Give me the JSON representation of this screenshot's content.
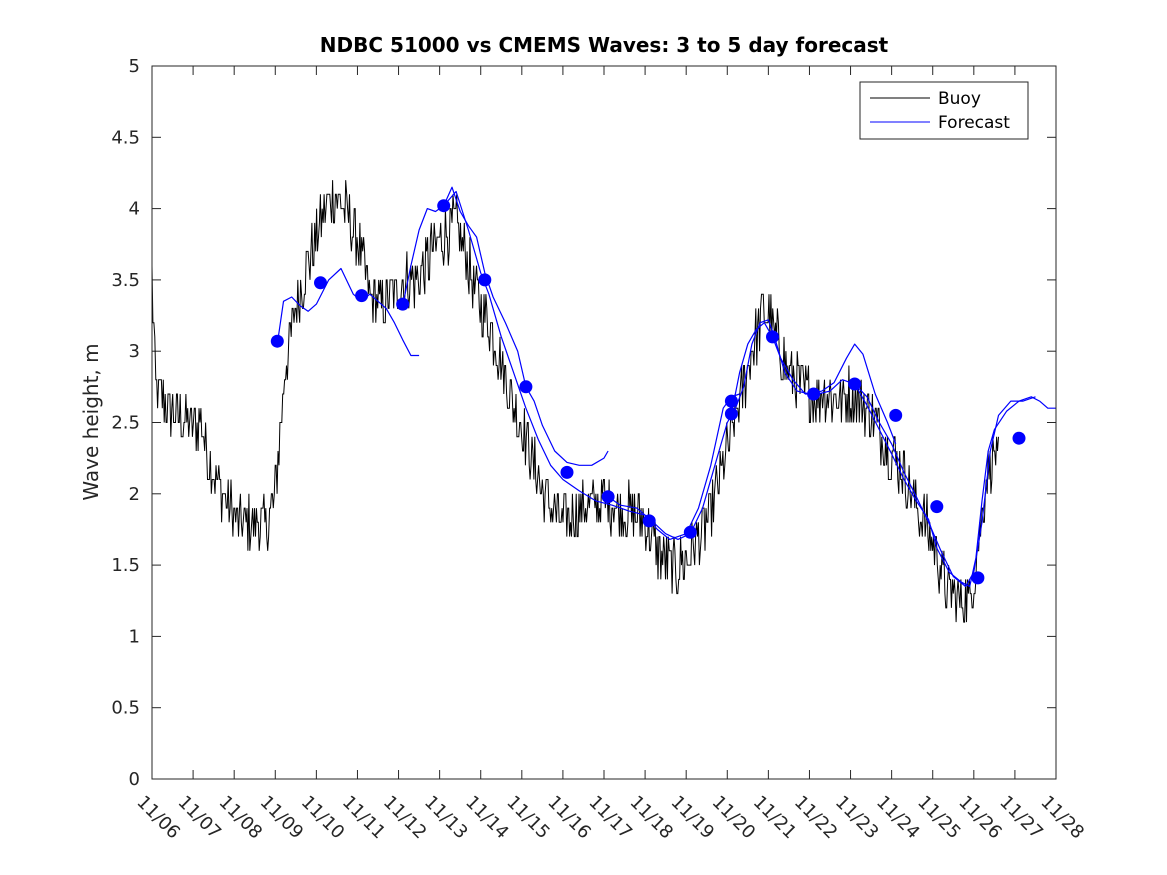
{
  "chart_data": {
    "type": "line",
    "title": "NDBC 51000 vs CMEMS Waves: 3 to 5 day forecast",
    "xlabel": "",
    "ylabel": "Wave height, m",
    "xlim": [
      0,
      22
    ],
    "ylim": [
      0,
      5
    ],
    "x_tick_labels": [
      "11/06",
      "11/07",
      "11/08",
      "11/09",
      "11/10",
      "11/11",
      "11/12",
      "11/13",
      "11/14",
      "11/15",
      "11/16",
      "11/17",
      "11/18",
      "11/19",
      "11/20",
      "11/21",
      "11/22",
      "11/23",
      "11/24",
      "11/25",
      "11/26",
      "11/27",
      "11/28"
    ],
    "y_ticks": [
      0,
      0.5,
      1,
      1.5,
      2,
      2.5,
      3,
      3.5,
      4,
      4.5,
      5
    ],
    "y_tick_labels": [
      "0",
      "0.5",
      "1",
      "1.5",
      "2",
      "2.5",
      "3",
      "3.5",
      "4",
      "4.5",
      "5"
    ],
    "legend": {
      "position": "top-right",
      "entries": [
        "Buoy",
        "Forecast"
      ]
    },
    "colors": {
      "buoy": "#000000",
      "forecast": "#0000ff",
      "axis": "#262626"
    },
    "buoy_anchors": [
      [
        0.0,
        3.5
      ],
      [
        0.1,
        2.7
      ],
      [
        0.4,
        2.6
      ],
      [
        0.8,
        2.5
      ],
      [
        1.2,
        2.5
      ],
      [
        1.4,
        2.2
      ],
      [
        1.7,
        2.0
      ],
      [
        2.1,
        1.8
      ],
      [
        2.4,
        1.8
      ],
      [
        2.8,
        1.8
      ],
      [
        3.0,
        2.0
      ],
      [
        3.1,
        2.4
      ],
      [
        3.25,
        2.9
      ],
      [
        3.5,
        3.3
      ],
      [
        3.8,
        3.6
      ],
      [
        4.2,
        4.0
      ],
      [
        4.4,
        4.1
      ],
      [
        4.7,
        4.0
      ],
      [
        5.0,
        3.8
      ],
      [
        5.3,
        3.4
      ],
      [
        5.6,
        3.3
      ],
      [
        5.9,
        3.4
      ],
      [
        6.2,
        3.5
      ],
      [
        6.5,
        3.5
      ],
      [
        6.8,
        3.7
      ],
      [
        7.1,
        3.8
      ],
      [
        7.4,
        3.9
      ],
      [
        7.6,
        3.7
      ],
      [
        7.9,
        3.4
      ],
      [
        8.2,
        3.2
      ],
      [
        8.5,
        2.9
      ],
      [
        8.8,
        2.6
      ],
      [
        9.1,
        2.4
      ],
      [
        9.4,
        2.1
      ],
      [
        9.7,
        1.9
      ],
      [
        10.0,
        1.8
      ],
      [
        10.5,
        1.9
      ],
      [
        11.0,
        1.95
      ],
      [
        11.5,
        1.9
      ],
      [
        12.0,
        1.8
      ],
      [
        12.3,
        1.6
      ],
      [
        12.7,
        1.45
      ],
      [
        13.0,
        1.55
      ],
      [
        13.3,
        1.7
      ],
      [
        13.6,
        1.85
      ],
      [
        14.0,
        2.3
      ],
      [
        14.3,
        2.65
      ],
      [
        14.6,
        3.0
      ],
      [
        14.9,
        3.3
      ],
      [
        15.2,
        3.1
      ],
      [
        15.5,
        2.85
      ],
      [
        15.8,
        2.75
      ],
      [
        16.1,
        2.7
      ],
      [
        16.4,
        2.7
      ],
      [
        16.7,
        2.65
      ],
      [
        17.0,
        2.7
      ],
      [
        17.3,
        2.65
      ],
      [
        17.6,
        2.5
      ],
      [
        17.9,
        2.35
      ],
      [
        18.2,
        2.2
      ],
      [
        18.5,
        2.0
      ],
      [
        18.8,
        1.8
      ],
      [
        19.1,
        1.6
      ],
      [
        19.3,
        1.35
      ],
      [
        19.6,
        1.25
      ],
      [
        19.9,
        1.25
      ],
      [
        20.1,
        1.6
      ],
      [
        20.3,
        2.1
      ],
      [
        20.5,
        2.3
      ],
      [
        20.6,
        2.2
      ]
    ],
    "buoy_noise_amplitude": 0.2,
    "forecast_series": [
      {
        "name": "Forecast",
        "points": [
          [
            3.05,
            3.05
          ],
          [
            3.2,
            3.35
          ],
          [
            3.4,
            3.38
          ],
          [
            3.6,
            3.32
          ],
          [
            3.8,
            3.28
          ],
          [
            4.0,
            3.33
          ],
          [
            4.3,
            3.5
          ],
          [
            4.6,
            3.58
          ],
          [
            4.9,
            3.4
          ],
          [
            5.1,
            3.35
          ],
          [
            5.3,
            3.4
          ],
          [
            5.5,
            3.35
          ],
          [
            5.7,
            3.3
          ],
          [
            5.9,
            3.2
          ],
          [
            6.1,
            3.08
          ],
          [
            6.3,
            2.97
          ],
          [
            6.5,
            2.97
          ]
        ]
      },
      {
        "name": "Forecast",
        "points": [
          [
            6.1,
            3.32
          ],
          [
            6.3,
            3.6
          ],
          [
            6.5,
            3.85
          ],
          [
            6.7,
            4.0
          ],
          [
            6.9,
            3.98
          ],
          [
            7.1,
            4.02
          ],
          [
            7.3,
            4.15
          ],
          [
            7.5,
            3.98
          ],
          [
            7.7,
            3.88
          ],
          [
            7.9,
            3.8
          ],
          [
            8.1,
            3.55
          ],
          [
            8.3,
            3.38
          ],
          [
            8.6,
            3.2
          ],
          [
            8.9,
            3.0
          ],
          [
            9.1,
            2.75
          ],
          [
            9.3,
            2.65
          ],
          [
            9.5,
            2.48
          ],
          [
            9.8,
            2.3
          ],
          [
            10.1,
            2.22
          ],
          [
            10.4,
            2.2
          ],
          [
            10.7,
            2.2
          ],
          [
            11.0,
            2.25
          ],
          [
            11.1,
            2.3
          ]
        ]
      },
      {
        "name": "Forecast",
        "points": [
          [
            7.1,
            4.02
          ],
          [
            7.4,
            4.12
          ],
          [
            7.7,
            3.85
          ],
          [
            8.0,
            3.55
          ],
          [
            8.2,
            3.4
          ],
          [
            8.5,
            3.1
          ],
          [
            8.8,
            2.85
          ],
          [
            9.1,
            2.6
          ],
          [
            9.4,
            2.38
          ],
          [
            9.7,
            2.2
          ],
          [
            10.0,
            2.1
          ],
          [
            10.4,
            2.02
          ],
          [
            10.8,
            1.95
          ],
          [
            11.2,
            1.92
          ],
          [
            11.6,
            1.88
          ],
          [
            12.0,
            1.85
          ],
          [
            12.3,
            1.75
          ],
          [
            12.6,
            1.68
          ],
          [
            13.0,
            1.72
          ],
          [
            13.3,
            1.9
          ],
          [
            13.6,
            2.2
          ],
          [
            13.9,
            2.6
          ],
          [
            14.1,
            2.68
          ],
          [
            14.3,
            2.7
          ]
        ]
      },
      {
        "name": "Forecast",
        "points": [
          [
            11.1,
            1.98
          ],
          [
            11.4,
            1.92
          ],
          [
            11.8,
            1.9
          ],
          [
            12.2,
            1.8
          ],
          [
            12.5,
            1.72
          ],
          [
            12.8,
            1.68
          ],
          [
            13.1,
            1.72
          ],
          [
            13.4,
            1.9
          ],
          [
            13.7,
            2.2
          ],
          [
            14.0,
            2.5
          ],
          [
            14.2,
            2.6
          ],
          [
            14.4,
            2.75
          ],
          [
            14.6,
            3.05
          ],
          [
            14.8,
            3.2
          ],
          [
            15.0,
            3.22
          ],
          [
            15.15,
            3.1
          ],
          [
            15.4,
            2.85
          ],
          [
            15.7,
            2.72
          ],
          [
            16.0,
            2.7
          ],
          [
            16.3,
            2.72
          ],
          [
            16.6,
            2.78
          ],
          [
            16.9,
            2.95
          ],
          [
            17.1,
            3.05
          ],
          [
            17.3,
            2.98
          ],
          [
            17.6,
            2.7
          ],
          [
            17.9,
            2.5
          ],
          [
            18.1,
            2.35
          ]
        ]
      },
      {
        "name": "Forecast",
        "points": [
          [
            14.1,
            2.56
          ],
          [
            14.3,
            2.85
          ],
          [
            14.5,
            3.05
          ],
          [
            14.7,
            3.15
          ],
          [
            14.9,
            3.2
          ],
          [
            15.1,
            3.1
          ],
          [
            15.3,
            2.95
          ],
          [
            15.6,
            2.8
          ],
          [
            15.9,
            2.7
          ],
          [
            16.2,
            2.7
          ],
          [
            16.5,
            2.72
          ],
          [
            16.8,
            2.8
          ],
          [
            17.1,
            2.77
          ],
          [
            17.4,
            2.68
          ],
          [
            17.7,
            2.5
          ],
          [
            18.0,
            2.35
          ],
          [
            18.3,
            2.15
          ],
          [
            18.6,
            1.98
          ],
          [
            18.9,
            1.8
          ],
          [
            19.2,
            1.6
          ],
          [
            19.5,
            1.42
          ],
          [
            19.8,
            1.35
          ],
          [
            20.0,
            1.45
          ],
          [
            20.2,
            1.8
          ],
          [
            20.4,
            2.3
          ],
          [
            20.6,
            2.55
          ],
          [
            20.9,
            2.65
          ],
          [
            21.2,
            2.65
          ],
          [
            21.5,
            2.68
          ]
        ]
      },
      {
        "name": "Forecast",
        "points": [
          [
            17.1,
            2.77
          ],
          [
            17.4,
            2.62
          ],
          [
            17.7,
            2.45
          ],
          [
            18.0,
            2.28
          ],
          [
            18.3,
            2.1
          ],
          [
            18.6,
            1.95
          ],
          [
            18.9,
            1.82
          ],
          [
            19.1,
            1.62
          ],
          [
            19.4,
            1.45
          ],
          [
            19.7,
            1.38
          ],
          [
            19.9,
            1.35
          ],
          [
            20.05,
            1.55
          ],
          [
            20.2,
            1.95
          ],
          [
            20.35,
            2.3
          ],
          [
            20.5,
            2.45
          ],
          [
            20.8,
            2.58
          ],
          [
            21.1,
            2.65
          ],
          [
            21.4,
            2.68
          ],
          [
            21.6,
            2.65
          ],
          [
            21.8,
            2.6
          ],
          [
            22.0,
            2.6
          ]
        ]
      }
    ],
    "forecast_markers": [
      [
        3.05,
        3.07
      ],
      [
        4.1,
        3.48
      ],
      [
        5.1,
        3.39
      ],
      [
        6.1,
        3.33
      ],
      [
        7.1,
        4.02
      ],
      [
        8.1,
        3.5
      ],
      [
        9.1,
        2.75
      ],
      [
        10.1,
        2.15
      ],
      [
        11.1,
        1.98
      ],
      [
        12.1,
        1.81
      ],
      [
        13.1,
        1.73
      ],
      [
        14.1,
        2.65
      ],
      [
        14.1,
        2.56
      ],
      [
        15.1,
        3.1
      ],
      [
        16.1,
        2.7
      ],
      [
        17.1,
        2.77
      ],
      [
        18.1,
        2.55
      ],
      [
        19.1,
        1.91
      ],
      [
        20.1,
        1.41
      ],
      [
        21.1,
        2.39
      ]
    ]
  }
}
